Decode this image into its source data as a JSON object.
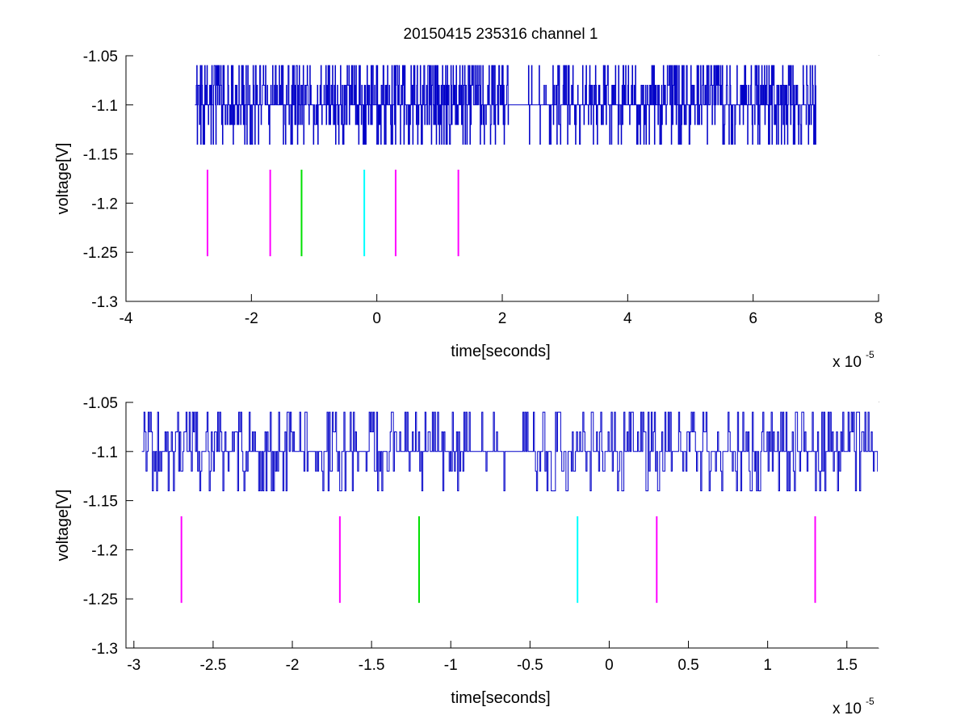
{
  "figure": {
    "title": "20150415 235316 channel 1"
  },
  "colors": {
    "trace": "#0000c8",
    "marker_magenta": "#ff00ff",
    "marker_green": "#00e000",
    "marker_cyan": "#00ffff",
    "axes": "#000000",
    "background": "#ffffff"
  },
  "chart_data": [
    {
      "type": "line",
      "title": "20150415 235316 channel 1",
      "xlabel": "time[seconds]",
      "ylabel": "voltage[V]",
      "x_exponent_label": "x 10",
      "x_exponent": "-5",
      "x_scale": "1e-5",
      "xlim": [
        -4,
        8
      ],
      "ylim": [
        -1.3,
        -1.05
      ],
      "xticks": [
        -4,
        -2,
        0,
        2,
        4,
        6,
        8
      ],
      "xtick_labels": [
        "-4",
        "-2",
        "0",
        "2",
        "4",
        "6",
        "8"
      ],
      "yticks": [
        -1.05,
        -1.1,
        -1.15,
        -1.2,
        -1.25,
        -1.3
      ],
      "ytick_labels": [
        "-1.05",
        "-1.1",
        "-1.15",
        "-1.2",
        "-1.25",
        "-1.3"
      ],
      "grid": false,
      "series": [
        {
          "kind": "quantized-noise",
          "x_range": [
            -2.9,
            7.0
          ],
          "levels": [
            -1.14,
            -1.12,
            -1.1,
            -1.08,
            -1.06
          ],
          "baseline": -1.1
        }
      ],
      "markers": [
        {
          "x": -2.7,
          "y_range": [
            -1.254,
            -1.166
          ],
          "color": "magenta"
        },
        {
          "x": -1.7,
          "y_range": [
            -1.254,
            -1.166
          ],
          "color": "magenta"
        },
        {
          "x": -1.2,
          "y_range": [
            -1.254,
            -1.166
          ],
          "color": "green"
        },
        {
          "x": -0.2,
          "y_range": [
            -1.254,
            -1.166
          ],
          "color": "cyan"
        },
        {
          "x": 0.3,
          "y_range": [
            -1.254,
            -1.166
          ],
          "color": "magenta"
        },
        {
          "x": 1.3,
          "y_range": [
            -1.254,
            -1.166
          ],
          "color": "magenta"
        }
      ]
    },
    {
      "type": "line",
      "title": "",
      "xlabel": "time[seconds]",
      "ylabel": "voltage[V]",
      "x_exponent_label": "x 10",
      "x_exponent": "-5",
      "x_scale": "1e-5",
      "xlim": [
        -3.05,
        1.7
      ],
      "ylim": [
        -1.3,
        -1.05
      ],
      "xticks": [
        -3,
        -2.5,
        -2,
        -1.5,
        -1,
        -0.5,
        0,
        0.5,
        1,
        1.5
      ],
      "xtick_labels": [
        "-3",
        "-2.5",
        "-2",
        "-1.5",
        "-1",
        "-0.5",
        "0",
        "0.5",
        "1",
        "1.5"
      ],
      "yticks": [
        -1.05,
        -1.1,
        -1.15,
        -1.2,
        -1.25,
        -1.3
      ],
      "ytick_labels": [
        "-1.05",
        "-1.1",
        "-1.15",
        "-1.2",
        "-1.25",
        "-1.3"
      ],
      "grid": false,
      "series": [
        {
          "kind": "quantized-noise",
          "x_range": [
            -2.95,
            1.7
          ],
          "levels": [
            -1.14,
            -1.12,
            -1.1,
            -1.08,
            -1.06
          ],
          "baseline": -1.1
        }
      ],
      "markers": [
        {
          "x": -2.7,
          "y_range": [
            -1.254,
            -1.166
          ],
          "color": "magenta"
        },
        {
          "x": -1.7,
          "y_range": [
            -1.254,
            -1.166
          ],
          "color": "magenta"
        },
        {
          "x": -1.2,
          "y_range": [
            -1.254,
            -1.166
          ],
          "color": "green"
        },
        {
          "x": -0.2,
          "y_range": [
            -1.254,
            -1.166
          ],
          "color": "cyan"
        },
        {
          "x": 0.3,
          "y_range": [
            -1.254,
            -1.166
          ],
          "color": "magenta"
        },
        {
          "x": 1.3,
          "y_range": [
            -1.254,
            -1.166
          ],
          "color": "magenta"
        }
      ]
    }
  ]
}
